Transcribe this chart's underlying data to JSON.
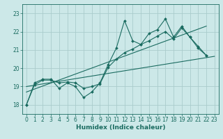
{
  "title": "",
  "xlabel": "Humidex (Indice chaleur)",
  "ylabel": "",
  "bg_color": "#cce8e8",
  "grid_color": "#aacccc",
  "line_color": "#1a6b60",
  "xlim": [
    -0.5,
    23.5
  ],
  "ylim": [
    17.5,
    23.5
  ],
  "yticks": [
    18,
    19,
    20,
    21,
    22,
    23
  ],
  "xticks": [
    0,
    1,
    2,
    3,
    4,
    5,
    6,
    7,
    8,
    9,
    10,
    11,
    12,
    13,
    14,
    15,
    16,
    17,
    18,
    19,
    20,
    21,
    22,
    23
  ],
  "series1": [
    18.0,
    19.2,
    19.4,
    19.4,
    18.9,
    19.2,
    19.0,
    18.4,
    18.7,
    19.2,
    20.2,
    21.1,
    22.6,
    21.5,
    21.3,
    21.9,
    22.1,
    22.7,
    21.7,
    22.3,
    21.7,
    21.1,
    20.7
  ],
  "series2": [
    18.0,
    19.1,
    19.35,
    19.35,
    19.2,
    19.25,
    19.2,
    18.9,
    19.0,
    19.15,
    20.05,
    20.5,
    20.85,
    21.05,
    21.3,
    21.5,
    21.75,
    22.0,
    21.6,
    22.2,
    21.7,
    21.2,
    20.7
  ],
  "series3_x": [
    0,
    22
  ],
  "series3_y": [
    18.7,
    22.3
  ],
  "series4_x": [
    0,
    23
  ],
  "series4_y": [
    19.0,
    20.65
  ]
}
